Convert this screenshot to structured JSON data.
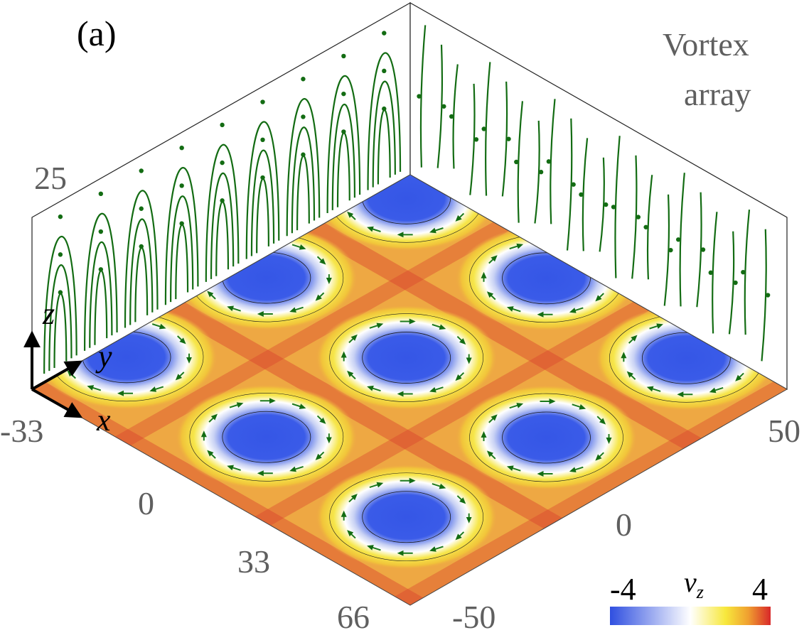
{
  "panel_label": "(a)",
  "title_line1": "Vortex",
  "title_line2": "array",
  "axes": {
    "x_label": "x",
    "y_label": "y",
    "z_label": "z",
    "x_ticks": [
      "-33",
      "0",
      "33",
      "66"
    ],
    "y_ticks": [
      "-50",
      "0",
      "50"
    ],
    "z_tick": "25"
  },
  "colorbar": {
    "label": "v",
    "label_sub": "z",
    "min_label": "-4",
    "max_label": "4",
    "colors": [
      "#2f4fe0",
      "#ffffff",
      "#f7e83c",
      "#f0a030",
      "#d8282a"
    ]
  },
  "colors": {
    "streamline": "#136c13",
    "background_field": "#eea843",
    "vortex_core": "#3a5be8"
  }
}
